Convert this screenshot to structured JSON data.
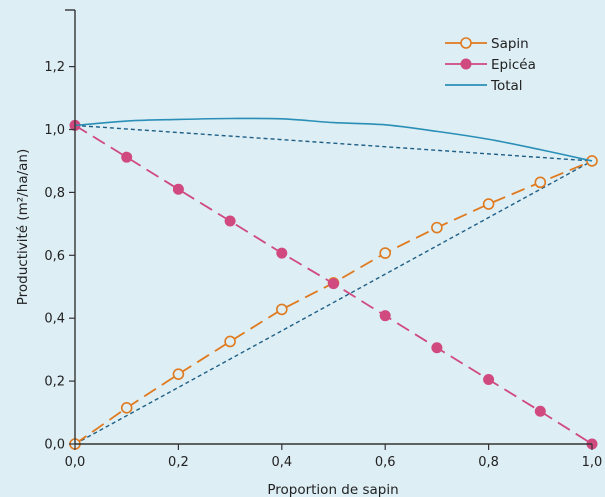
{
  "chart_data": {
    "type": "line",
    "xlabel": "Proportion de sapin",
    "ylabel": "Productivité (m²/ha/an)",
    "xlim": [
      0,
      1
    ],
    "ylim": [
      0,
      1.38
    ],
    "x_ticks": [
      "0,0",
      "0,2",
      "0,4",
      "0,6",
      "0,8",
      "1,0"
    ],
    "x_tick_values": [
      0,
      0.2,
      0.4,
      0.6,
      0.8,
      1.0
    ],
    "y_ticks": [
      "0,0",
      "0,2",
      "0,4",
      "0,6",
      "0,8",
      "1,0",
      "1,2"
    ],
    "y_tick_values": [
      0,
      0.2,
      0.4,
      0.6,
      0.8,
      1.0,
      1.2
    ],
    "grid": false,
    "legend_position": "top-right",
    "series": [
      {
        "name": "Sapin",
        "color": "#e07a1f",
        "marker": "open-circle",
        "line": "long-dash",
        "x": [
          0,
          0.1,
          0.2,
          0.3,
          0.4,
          0.5,
          0.6,
          0.7,
          0.8,
          0.9,
          1.0
        ],
        "y": [
          0,
          0.115,
          0.222,
          0.326,
          0.428,
          0.512,
          0.607,
          0.688,
          0.763,
          0.832,
          0.9
        ]
      },
      {
        "name": "Epicéa",
        "color": "#d04a80",
        "marker": "filled-circle",
        "line": "long-dash",
        "x": [
          0,
          0.1,
          0.2,
          0.3,
          0.4,
          0.5,
          0.6,
          0.7,
          0.8,
          0.9,
          1.0
        ],
        "y": [
          1.013,
          0.912,
          0.81,
          0.709,
          0.607,
          0.51,
          0.408,
          0.306,
          0.205,
          0.104,
          0
        ]
      },
      {
        "name": "Total",
        "color": "#2a8fb6",
        "marker": "none",
        "line": "solid",
        "x": [
          0,
          0.1,
          0.2,
          0.3,
          0.4,
          0.5,
          0.6,
          0.7,
          0.8,
          0.9,
          1.0
        ],
        "y": [
          1.013,
          1.027,
          1.032,
          1.035,
          1.034,
          1.022,
          1.015,
          0.994,
          0.969,
          0.936,
          0.9
        ]
      }
    ],
    "reference_lines": [
      {
        "color": "#1f5f86",
        "line": "short-dash",
        "x": [
          0,
          1.0
        ],
        "y": [
          0,
          0.9
        ]
      },
      {
        "color": "#1f5f86",
        "line": "short-dash",
        "x": [
          0,
          1.0
        ],
        "y": [
          1.013,
          0.9
        ]
      }
    ]
  }
}
